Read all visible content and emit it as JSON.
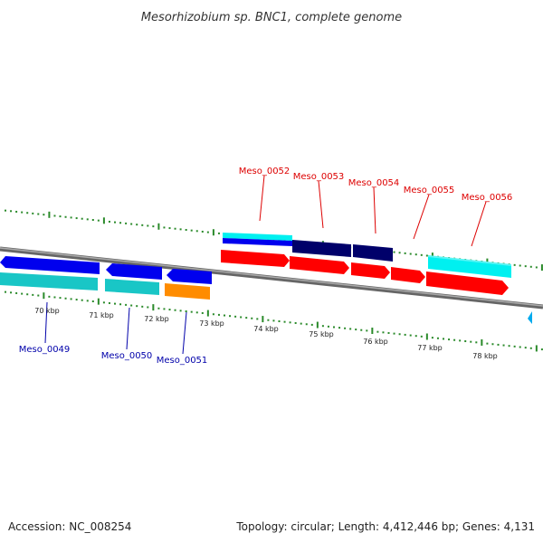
{
  "title": "Mesorhizobium sp. BNC1, complete genome",
  "accession": "Accession: NC_008254",
  "topology": "Topology: circular; Length: 4,412,446 bp; Genes: 4,131",
  "colors": {
    "plus_label": "#dd0000",
    "minus_label": "#0000aa",
    "tick": "#2a8a2a",
    "backbone": "#888888",
    "red": "#ff0000",
    "blue": "#0000ee",
    "navy": "#00006a",
    "teal": "#19c6c6",
    "cyan": "#00f0f0",
    "orange": "#ff8c00"
  },
  "kbp_labels": [
    "70 kbp",
    "71 kbp",
    "72 kbp",
    "73 kbp",
    "74 kbp",
    "75 kbp",
    "76 kbp",
    "77 kbp",
    "78 kbp"
  ],
  "plus_labels": [
    "Meso_0052",
    "Meso_0053",
    "Meso_0054",
    "Meso_0055",
    "Meso_0056"
  ],
  "minus_labels": [
    "Meso_0049",
    "Meso_0050",
    "Meso_0051"
  ]
}
